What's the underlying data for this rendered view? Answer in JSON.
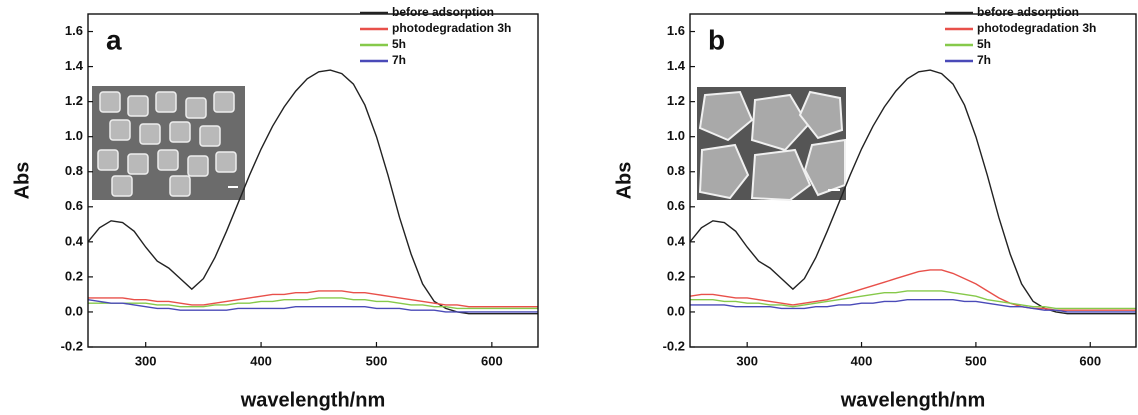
{
  "chart_data": [
    {
      "type": "line",
      "panel": "a",
      "xlabel": "wavelength/nm",
      "ylabel": "Abs",
      "xlim": [
        250,
        640
      ],
      "ylim": [
        -0.2,
        1.7
      ],
      "xticks": [
        300,
        400,
        500,
        600
      ],
      "yticks": [
        -0.2,
        {
          "value": 0,
          "label": "0.0"
        },
        0.2,
        0.4,
        0.6,
        0.8,
        {
          "value": 1,
          "label": "1.0"
        },
        1.2,
        1.4,
        1.6
      ],
      "x": [
        250,
        260,
        270,
        280,
        290,
        300,
        310,
        320,
        330,
        340,
        350,
        360,
        370,
        380,
        390,
        400,
        410,
        420,
        430,
        440,
        450,
        460,
        470,
        480,
        490,
        500,
        510,
        520,
        530,
        540,
        550,
        560,
        570,
        580,
        590,
        600,
        610,
        620,
        630,
        640
      ],
      "series": [
        {
          "name": "before adsorption",
          "color": "#222222",
          "values": [
            0.4,
            0.48,
            0.52,
            0.51,
            0.46,
            0.37,
            0.29,
            0.25,
            0.19,
            0.13,
            0.19,
            0.31,
            0.46,
            0.62,
            0.78,
            0.93,
            1.06,
            1.17,
            1.26,
            1.33,
            1.37,
            1.38,
            1.36,
            1.3,
            1.18,
            1.0,
            0.78,
            0.54,
            0.33,
            0.16,
            0.06,
            0.02,
            0.0,
            -0.01,
            -0.01,
            -0.01,
            -0.01,
            -0.01,
            -0.01,
            -0.01
          ]
        },
        {
          "name": "photodegradation 3h",
          "color": "#e8504a",
          "values": [
            0.08,
            0.08,
            0.08,
            0.08,
            0.07,
            0.07,
            0.06,
            0.06,
            0.05,
            0.04,
            0.04,
            0.05,
            0.06,
            0.07,
            0.08,
            0.09,
            0.1,
            0.1,
            0.11,
            0.11,
            0.12,
            0.12,
            0.12,
            0.11,
            0.11,
            0.1,
            0.09,
            0.08,
            0.07,
            0.06,
            0.05,
            0.04,
            0.04,
            0.03,
            0.03,
            0.03,
            0.03,
            0.03,
            0.03,
            0.03
          ]
        },
        {
          "name": "5h",
          "color": "#86c94a",
          "values": [
            0.05,
            0.05,
            0.05,
            0.05,
            0.05,
            0.05,
            0.04,
            0.04,
            0.03,
            0.03,
            0.03,
            0.04,
            0.04,
            0.05,
            0.05,
            0.06,
            0.06,
            0.07,
            0.07,
            0.07,
            0.08,
            0.08,
            0.08,
            0.07,
            0.07,
            0.06,
            0.06,
            0.05,
            0.04,
            0.04,
            0.03,
            0.03,
            0.02,
            0.02,
            0.02,
            0.02,
            0.02,
            0.02,
            0.02,
            0.02
          ]
        },
        {
          "name": "7h",
          "color": "#4a4ab8",
          "values": [
            0.07,
            0.06,
            0.05,
            0.05,
            0.04,
            0.03,
            0.02,
            0.02,
            0.01,
            0.01,
            0.01,
            0.01,
            0.01,
            0.02,
            0.02,
            0.02,
            0.02,
            0.02,
            0.03,
            0.03,
            0.03,
            0.03,
            0.03,
            0.03,
            0.03,
            0.02,
            0.02,
            0.02,
            0.01,
            0.01,
            0.01,
            0.0,
            0.0,
            0.0,
            0.0,
            0.0,
            0.0,
            0.0,
            0.0,
            0.0
          ]
        }
      ]
    },
    {
      "type": "line",
      "panel": "b",
      "xlabel": "wavelength/nm",
      "ylabel": "Abs",
      "xlim": [
        250,
        640
      ],
      "ylim": [
        -0.2,
        1.7
      ],
      "xticks": [
        300,
        400,
        500,
        600
      ],
      "yticks": [
        -0.2,
        {
          "value": 0,
          "label": "0.0"
        },
        0.2,
        0.4,
        0.6,
        0.8,
        {
          "value": 1,
          "label": "1.0"
        },
        1.2,
        1.4,
        1.6
      ],
      "x": [
        250,
        260,
        270,
        280,
        290,
        300,
        310,
        320,
        330,
        340,
        350,
        360,
        370,
        380,
        390,
        400,
        410,
        420,
        430,
        440,
        450,
        460,
        470,
        480,
        490,
        500,
        510,
        520,
        530,
        540,
        550,
        560,
        570,
        580,
        590,
        600,
        610,
        620,
        630,
        640
      ],
      "series": [
        {
          "name": "before adsorption",
          "color": "#222222",
          "values": [
            0.4,
            0.48,
            0.52,
            0.51,
            0.46,
            0.37,
            0.29,
            0.25,
            0.19,
            0.13,
            0.19,
            0.31,
            0.46,
            0.62,
            0.78,
            0.93,
            1.06,
            1.17,
            1.26,
            1.33,
            1.37,
            1.38,
            1.36,
            1.3,
            1.18,
            1.0,
            0.78,
            0.54,
            0.33,
            0.16,
            0.06,
            0.02,
            0.0,
            -0.01,
            -0.01,
            -0.01,
            -0.01,
            -0.01,
            -0.01,
            -0.01
          ]
        },
        {
          "name": "photodegradation 3h",
          "color": "#e8504a",
          "values": [
            0.09,
            0.1,
            0.1,
            0.09,
            0.08,
            0.08,
            0.07,
            0.06,
            0.05,
            0.04,
            0.05,
            0.06,
            0.07,
            0.09,
            0.11,
            0.13,
            0.15,
            0.17,
            0.19,
            0.21,
            0.23,
            0.24,
            0.24,
            0.22,
            0.19,
            0.16,
            0.12,
            0.08,
            0.05,
            0.03,
            0.02,
            0.02,
            0.01,
            0.01,
            0.01,
            0.01,
            0.01,
            0.01,
            0.01,
            0.01
          ]
        },
        {
          "name": "5h",
          "color": "#86c94a",
          "values": [
            0.07,
            0.07,
            0.07,
            0.06,
            0.06,
            0.05,
            0.05,
            0.04,
            0.04,
            0.03,
            0.04,
            0.05,
            0.06,
            0.07,
            0.08,
            0.09,
            0.1,
            0.11,
            0.11,
            0.12,
            0.12,
            0.12,
            0.12,
            0.11,
            0.1,
            0.09,
            0.07,
            0.06,
            0.05,
            0.04,
            0.03,
            0.03,
            0.02,
            0.02,
            0.02,
            0.02,
            0.02,
            0.02,
            0.02,
            0.02
          ]
        },
        {
          "name": "7h",
          "color": "#4a4ab8",
          "values": [
            0.04,
            0.04,
            0.04,
            0.04,
            0.03,
            0.03,
            0.03,
            0.03,
            0.02,
            0.02,
            0.02,
            0.03,
            0.03,
            0.04,
            0.04,
            0.05,
            0.05,
            0.06,
            0.06,
            0.07,
            0.07,
            0.07,
            0.07,
            0.07,
            0.06,
            0.06,
            0.05,
            0.04,
            0.03,
            0.03,
            0.02,
            0.01,
            0.01,
            0.0,
            0.0,
            0.0,
            0.0,
            0.0,
            0.0,
            0.0
          ]
        }
      ]
    }
  ]
}
